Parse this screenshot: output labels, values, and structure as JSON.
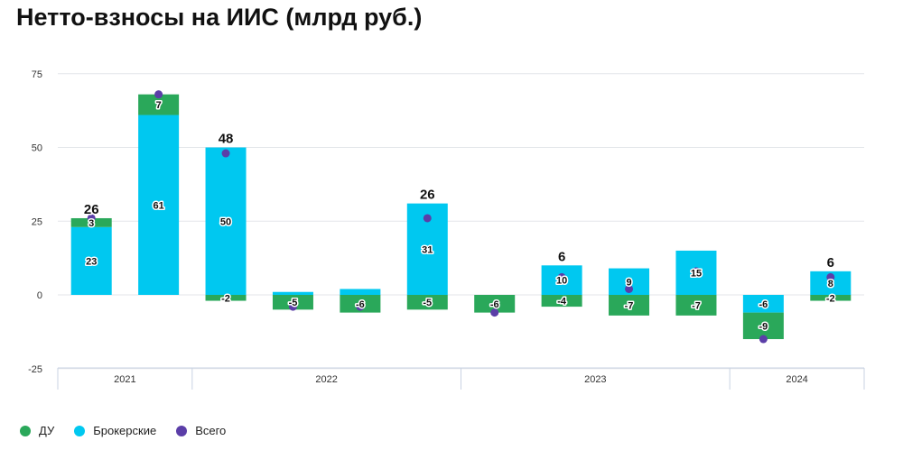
{
  "title": "Нетто-взносы на ИИС (млрд руб.)",
  "colors": {
    "du": "#2aa85a",
    "broker": "#00c8f0",
    "total": "#5b3ea8",
    "grid": "#e3e6ea",
    "axis": "#c9d3e3"
  },
  "chart_data": {
    "type": "bar",
    "stacked": true,
    "title": "Нетто-взносы на ИИС (млрд руб.)",
    "ylim": [
      -25,
      80
    ],
    "yticks": [
      75,
      50,
      25,
      0,
      -25
    ],
    "ytick_labels": [
      "75",
      "50",
      "25",
      "0",
      "-25"
    ],
    "years": [
      {
        "label": "2021",
        "count": 2
      },
      {
        "label": "2022",
        "count": 4
      },
      {
        "label": "2023",
        "count": 4
      },
      {
        "label": "2024",
        "count": 2
      }
    ],
    "series": [
      {
        "name": "Брокерские",
        "type": "bar",
        "values": [
          23,
          61,
          50,
          1,
          2,
          31,
          0,
          10,
          9,
          15,
          -6,
          8
        ],
        "labels": [
          "23",
          "61",
          "50",
          "",
          "",
          "31",
          "",
          "10",
          "9",
          "15",
          "-6",
          "8"
        ]
      },
      {
        "name": "ДУ",
        "type": "bar",
        "values": [
          3,
          7,
          -2,
          -5,
          -6,
          -5,
          -6,
          -4,
          -7,
          -7,
          -9,
          -2
        ],
        "labels": [
          "3",
          "7",
          "-2",
          "-5",
          "-6",
          "-5",
          "-6",
          "-4",
          "-7",
          "-7",
          "-9",
          "-2"
        ]
      },
      {
        "name": "Всего",
        "type": "scatter",
        "values": [
          26,
          68,
          48,
          -4,
          -4,
          26,
          -6,
          6,
          2,
          8,
          -15,
          6
        ],
        "labels": [
          "26",
          "",
          "48",
          "",
          "",
          "26",
          "",
          "6",
          "",
          "",
          "",
          "6"
        ]
      }
    ]
  },
  "legend": [
    {
      "label": "ДУ",
      "color": "#2aa85a"
    },
    {
      "label": "Брокерские",
      "color": "#00c8f0"
    },
    {
      "label": "Всего",
      "color": "#5b3ea8"
    }
  ]
}
